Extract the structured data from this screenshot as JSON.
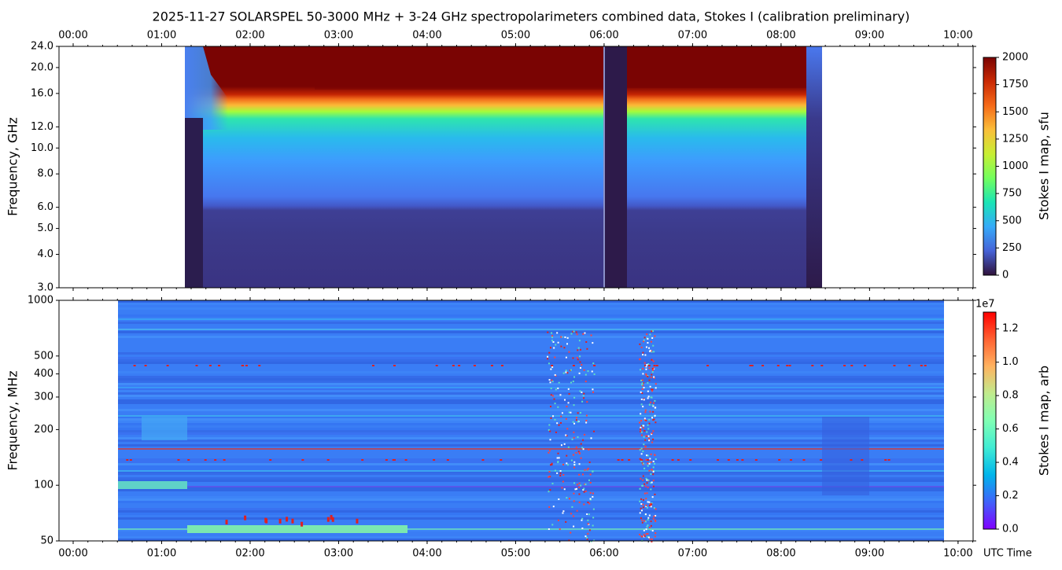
{
  "chart_data": [
    {
      "type": "heatmap",
      "title": "2025-11-27  SOLARSPEL  50-3000 MHz  +  3-24 GHz  spectropolarimeters combined data,  Stokes I  (calibration preliminary)",
      "ylabel": "Frequency, GHz",
      "log_y": true,
      "xlim": [
        -0.16,
        10.17
      ],
      "xticks": [
        {
          "value": 0,
          "label": "00:00"
        },
        {
          "value": 1,
          "label": "01:00"
        },
        {
          "value": 2,
          "label": "02:00"
        },
        {
          "value": 3,
          "label": "03:00"
        },
        {
          "value": 4,
          "label": "04:00"
        },
        {
          "value": 5,
          "label": "05:00"
        },
        {
          "value": 6,
          "label": "06:00"
        },
        {
          "value": 7,
          "label": "07:00"
        },
        {
          "value": 8,
          "label": "08:00"
        },
        {
          "value": 9,
          "label": "09:00"
        },
        {
          "value": 10,
          "label": "10:00"
        }
      ],
      "ylim": [
        3,
        24
      ],
      "yticks": [
        {
          "value": 3,
          "label": "3.0"
        },
        {
          "value": 4,
          "label": "4.0"
        },
        {
          "value": 5,
          "label": "5.0"
        },
        {
          "value": 6,
          "label": "6.0"
        },
        {
          "value": 8,
          "label": "8.0"
        },
        {
          "value": 10,
          "label": "10.0"
        },
        {
          "value": 12,
          "label": "12.0"
        },
        {
          "value": 16,
          "label": "16.0"
        },
        {
          "value": 20,
          "label": "20.0"
        },
        {
          "value": 24,
          "label": "24.0"
        }
      ],
      "colorbar": {
        "label": "Stokes I map, sfu",
        "colormap": "turbo",
        "lim": [
          0,
          2000
        ],
        "ticks": [
          0,
          250,
          500,
          750,
          1000,
          1250,
          1500,
          1750,
          2000
        ]
      }
    },
    {
      "type": "heatmap",
      "ylabel": "Frequency, MHz",
      "xlabel": "UTC Time",
      "log_y": true,
      "xlim": [
        -0.16,
        10.17
      ],
      "xticks": [
        {
          "value": 0,
          "label": "00:00"
        },
        {
          "value": 1,
          "label": "01:00"
        },
        {
          "value": 2,
          "label": "02:00"
        },
        {
          "value": 3,
          "label": "03:00"
        },
        {
          "value": 4,
          "label": "04:00"
        },
        {
          "value": 5,
          "label": "05:00"
        },
        {
          "value": 6,
          "label": "06:00"
        },
        {
          "value": 7,
          "label": "07:00"
        },
        {
          "value": 8,
          "label": "08:00"
        },
        {
          "value": 9,
          "label": "09:00"
        },
        {
          "value": 10,
          "label": "10:00"
        }
      ],
      "ylim": [
        50,
        1000
      ],
      "yticks": [
        50,
        100,
        200,
        300,
        400,
        500,
        1000
      ],
      "colorbar": {
        "label": "Stokes I map, arb",
        "colormap": "rainbow",
        "offset_label": "1e7",
        "lim": [
          0,
          1.3
        ],
        "ticks": [
          {
            "value": 0,
            "label": "0.0"
          },
          {
            "value": 0.2,
            "label": "0.2"
          },
          {
            "value": 0.4,
            "label": "0.4"
          },
          {
            "value": 0.6,
            "label": "0.6"
          },
          {
            "value": 0.8,
            "label": "0.8"
          },
          {
            "value": 1.0,
            "label": "1.0"
          },
          {
            "value": 1.2,
            "label": "1.2"
          }
        ]
      }
    }
  ]
}
